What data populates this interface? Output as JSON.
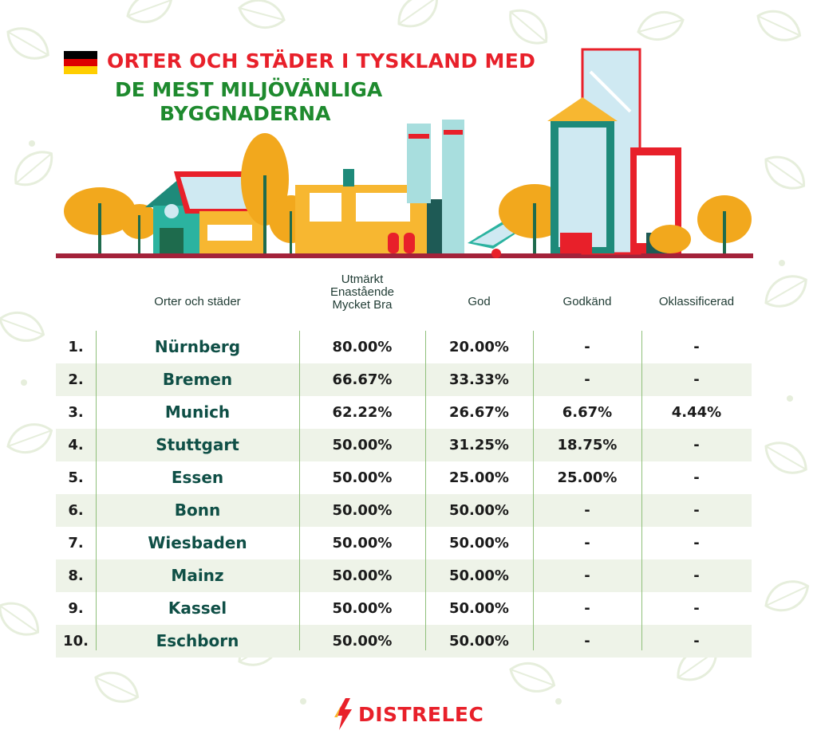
{
  "title": {
    "line1": "ORTER OCH STÄDER I TYSKLAND MED",
    "line2": "DE MEST MILJÖVÄNLIGA",
    "line3": "BYGGNADERNA"
  },
  "flag": {
    "colors": [
      "#000000",
      "#dd0000",
      "#ffce00"
    ]
  },
  "table": {
    "headers": {
      "city": "Orter och städer",
      "v1_line1": "Utmärkt",
      "v1_line2": "Enastående",
      "v1_line3": "Mycket Bra",
      "v2": "God",
      "v3": "Godkänd",
      "v4": "Oklassificerad"
    },
    "rows": [
      {
        "rank": "1.",
        "city": "Nürnberg",
        "v1": "80.00%",
        "v2": "20.00%",
        "v3": "-",
        "v4": "-"
      },
      {
        "rank": "2.",
        "city": "Bremen",
        "v1": "66.67%",
        "v2": "33.33%",
        "v3": "-",
        "v4": "-"
      },
      {
        "rank": "3.",
        "city": "Munich",
        "v1": "62.22%",
        "v2": "26.67%",
        "v3": "6.67%",
        "v4": "4.44%"
      },
      {
        "rank": "4.",
        "city": "Stuttgart",
        "v1": "50.00%",
        "v2": "31.25%",
        "v3": "18.75%",
        "v4": "-"
      },
      {
        "rank": "5.",
        "city": "Essen",
        "v1": "50.00%",
        "v2": "25.00%",
        "v3": "25.00%",
        "v4": "-"
      },
      {
        "rank": "6.",
        "city": "Bonn",
        "v1": "50.00%",
        "v2": "50.00%",
        "v3": "-",
        "v4": "-"
      },
      {
        "rank": "7.",
        "city": "Wiesbaden",
        "v1": "50.00%",
        "v2": "50.00%",
        "v3": "-",
        "v4": "-"
      },
      {
        "rank": "8.",
        "city": "Mainz",
        "v1": "50.00%",
        "v2": "50.00%",
        "v3": "-",
        "v4": "-"
      },
      {
        "rank": "9.",
        "city": "Kassel",
        "v1": "50.00%",
        "v2": "50.00%",
        "v3": "-",
        "v4": "-"
      },
      {
        "rank": "10.",
        "city": "Eschborn",
        "v1": "50.00%",
        "v2": "50.00%",
        "v3": "-",
        "v4": "-"
      }
    ]
  },
  "brand": {
    "name": "DISTRELEC",
    "color": "#e8202a"
  }
}
